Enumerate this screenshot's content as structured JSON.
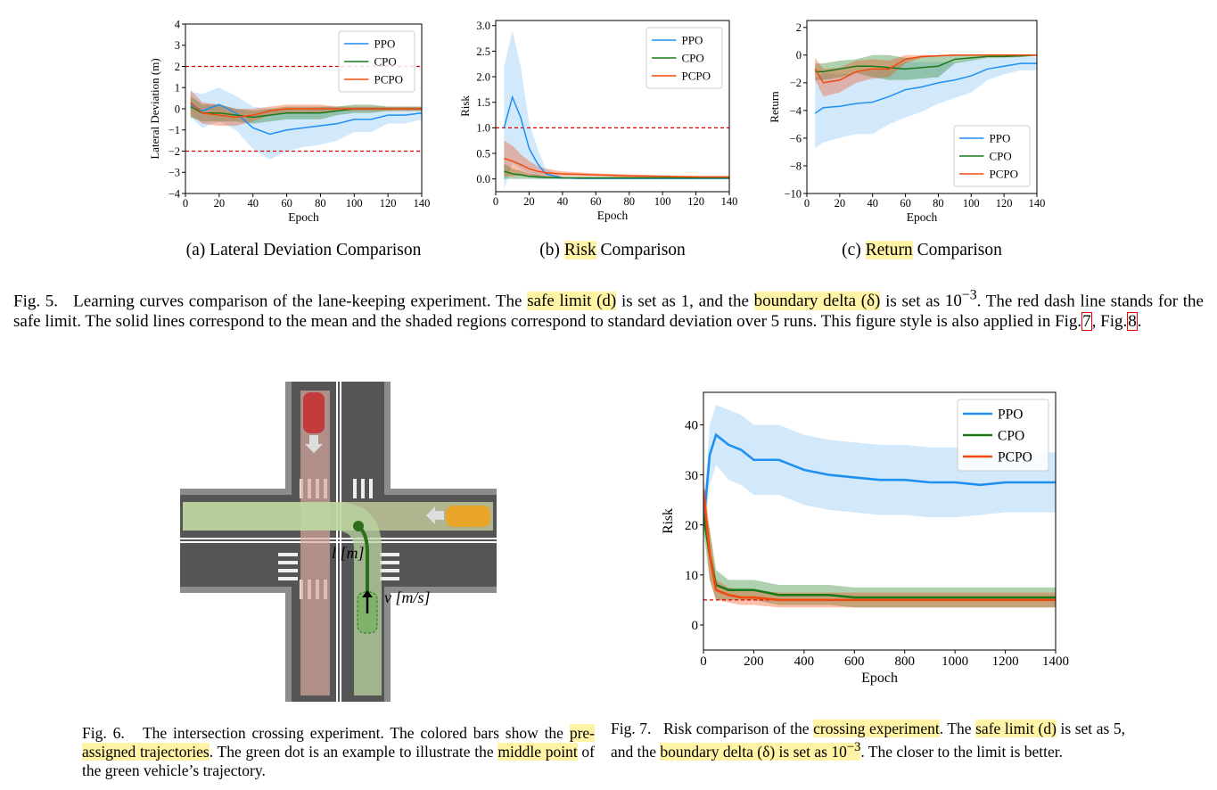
{
  "chart_data": [
    {
      "type": "line",
      "xlabel": "Epoch",
      "ylabel": "Lateral Deviation (m)",
      "xlim": [
        0,
        140
      ],
      "ylim": [
        -4,
        4
      ],
      "xticks": [
        0,
        20,
        40,
        60,
        80,
        100,
        120,
        140
      ],
      "yticks": [
        {
          "value": -4,
          "label": "−4"
        },
        {
          "value": -3,
          "label": "−3"
        },
        {
          "value": -2,
          "label": "−2"
        },
        {
          "value": -1,
          "label": "−1"
        },
        0,
        1,
        2,
        3,
        4
      ],
      "reference_lines": [
        2,
        -2
      ],
      "reference_color": "#e00000",
      "legend": "upper right",
      "x": [
        3,
        10,
        20,
        30,
        40,
        50,
        60,
        70,
        80,
        90,
        100,
        110,
        120,
        130,
        140
      ],
      "series": [
        {
          "name": "PPO",
          "color": "#1f8ff0",
          "values": [
            0.2,
            -0.1,
            0.2,
            -0.2,
            -0.9,
            -1.2,
            -1.0,
            -0.9,
            -0.8,
            -0.7,
            -0.5,
            -0.5,
            -0.3,
            -0.3,
            -0.2
          ],
          "std": [
            0.6,
            0.8,
            0.8,
            0.8,
            1.0,
            1.2,
            1.0,
            0.9,
            0.9,
            0.8,
            0.6,
            0.6,
            0.4,
            0.4,
            0.3
          ]
        },
        {
          "name": "CPO",
          "color": "#1a7a1a",
          "values": [
            0.1,
            -0.2,
            -0.2,
            -0.3,
            -0.4,
            -0.3,
            -0.2,
            -0.2,
            -0.2,
            -0.1,
            0.0,
            0.0,
            0.0,
            0.0,
            0.0
          ],
          "std": [
            0.5,
            0.4,
            0.4,
            0.3,
            0.3,
            0.3,
            0.3,
            0.3,
            0.3,
            0.2,
            0.2,
            0.2,
            0.1,
            0.1,
            0.1
          ]
        },
        {
          "name": "PCPO",
          "color": "#f04a10",
          "values": [
            0.3,
            -0.2,
            -0.3,
            -0.4,
            -0.3,
            -0.1,
            0.0,
            0.0,
            0.0,
            0.0,
            0.0,
            0.0,
            0.0,
            0.0,
            0.0
          ],
          "std": [
            0.6,
            0.5,
            0.5,
            0.4,
            0.3,
            0.2,
            0.2,
            0.2,
            0.2,
            0.1,
            0.1,
            0.1,
            0.1,
            0.1,
            0.1
          ]
        }
      ],
      "caption": [
        "(a) Lateral Deviation Comparison"
      ]
    },
    {
      "type": "line",
      "xlabel": "Epoch",
      "ylabel": "Risk",
      "xlim": [
        0,
        140
      ],
      "ylim": [
        -0.25,
        3.1
      ],
      "xticks": [
        0,
        20,
        40,
        60,
        80,
        100,
        120,
        140
      ],
      "yticks": [
        {
          "value": 0,
          "label": "0.0"
        },
        0.5,
        {
          "value": 1,
          "label": "1.0"
        },
        1.5,
        {
          "value": 2,
          "label": "2.0"
        },
        2.5,
        {
          "value": 3,
          "label": "3.0"
        }
      ],
      "reference_lines": [
        1
      ],
      "reference_color": "#e00000",
      "legend": "upper right",
      "x": [
        5,
        10,
        15,
        20,
        25,
        30,
        40,
        50,
        60,
        70,
        80,
        100,
        120,
        140
      ],
      "series": [
        {
          "name": "PPO",
          "color": "#1f8ff0",
          "values": [
            1.0,
            1.6,
            1.2,
            0.6,
            0.3,
            0.1,
            0.02,
            0.01,
            0.01,
            0.01,
            0.01,
            0.01,
            0.01,
            0.01
          ],
          "std": [
            1.2,
            1.3,
            1.0,
            0.5,
            0.3,
            0.1,
            0.02,
            0.01,
            0.01,
            0.01,
            0.01,
            0.01,
            0.01,
            0.01
          ]
        },
        {
          "name": "CPO",
          "color": "#1a7a1a",
          "values": [
            0.15,
            0.1,
            0.08,
            0.05,
            0.04,
            0.03,
            0.02,
            0.02,
            0.02,
            0.02,
            0.02,
            0.02,
            0.02,
            0.02
          ],
          "std": [
            0.15,
            0.1,
            0.08,
            0.05,
            0.04,
            0.03,
            0.02,
            0.02,
            0.02,
            0.02,
            0.02,
            0.02,
            0.02,
            0.02
          ]
        },
        {
          "name": "PCPO",
          "color": "#f04a10",
          "values": [
            0.4,
            0.35,
            0.28,
            0.2,
            0.15,
            0.12,
            0.1,
            0.09,
            0.08,
            0.07,
            0.06,
            0.05,
            0.04,
            0.04
          ],
          "std": [
            0.35,
            0.3,
            0.2,
            0.15,
            0.1,
            0.08,
            0.05,
            0.04,
            0.03,
            0.03,
            0.03,
            0.02,
            0.02,
            0.02
          ]
        }
      ],
      "caption": [
        "(b) ",
        {
          "text": "Risk",
          "highlight": true
        },
        " Comparison"
      ]
    },
    {
      "type": "line",
      "xlabel": "Epoch",
      "ylabel": "Return",
      "xlim": [
        0,
        140
      ],
      "ylim": [
        -10,
        2.5
      ],
      "xticks": [
        0,
        20,
        40,
        60,
        80,
        100,
        120,
        140
      ],
      "yticks": [
        {
          "value": -10,
          "label": "−10"
        },
        {
          "value": -8,
          "label": "−8"
        },
        {
          "value": -6,
          "label": "−6"
        },
        {
          "value": -4,
          "label": "−4"
        },
        {
          "value": -2,
          "label": "−2"
        },
        0,
        2
      ],
      "legend": "lower right",
      "x": [
        5,
        10,
        20,
        30,
        40,
        50,
        60,
        70,
        80,
        90,
        100,
        110,
        120,
        130,
        140
      ],
      "series": [
        {
          "name": "PPO",
          "color": "#1f8ff0",
          "values": [
            -4.2,
            -3.8,
            -3.7,
            -3.5,
            -3.4,
            -3.0,
            -2.5,
            -2.3,
            -2.0,
            -1.8,
            -1.5,
            -1.0,
            -0.8,
            -0.6,
            -0.6
          ],
          "std": [
            2.5,
            2.5,
            2.3,
            2.2,
            2.3,
            2.0,
            2.0,
            1.8,
            1.5,
            1.3,
            1.2,
            0.8,
            0.6,
            0.5,
            0.5
          ]
        },
        {
          "name": "CPO",
          "color": "#1a7a1a",
          "values": [
            -1.2,
            -1.2,
            -1.0,
            -0.8,
            -0.8,
            -0.9,
            -1.0,
            -0.9,
            -0.8,
            -0.3,
            -0.2,
            -0.1,
            -0.1,
            -0.05,
            0.0
          ],
          "std": [
            0.6,
            0.6,
            0.6,
            0.5,
            0.8,
            0.9,
            0.8,
            0.8,
            0.8,
            0.3,
            0.2,
            0.1,
            0.1,
            0.1,
            0.05
          ]
        },
        {
          "name": "PCPO",
          "color": "#f04a10",
          "values": [
            -1.0,
            -2.0,
            -1.8,
            -1.2,
            -1.0,
            -1.0,
            -0.3,
            -0.1,
            -0.05,
            0,
            0,
            0,
            0,
            0,
            0
          ],
          "std": [
            0.8,
            1.0,
            0.9,
            0.8,
            0.7,
            0.6,
            0.3,
            0.1,
            0.05,
            0.05,
            0.05,
            0.05,
            0.05,
            0.05,
            0.05
          ]
        }
      ],
      "caption": [
        "(c) ",
        {
          "text": "Return",
          "highlight": true
        },
        " Comparison"
      ]
    },
    {
      "type": "line",
      "xlabel": "Epoch",
      "ylabel": "Risk",
      "xlim": [
        0,
        1400
      ],
      "ylim": [
        -5,
        46.5
      ],
      "xticks": [
        0,
        200,
        400,
        600,
        800,
        1000,
        1200,
        1400
      ],
      "yticks": [
        0,
        10,
        20,
        30,
        40
      ],
      "reference_lines": [
        5
      ],
      "reference_color": "#e00000",
      "legend": "upper right",
      "x": [
        0,
        25,
        50,
        100,
        150,
        200,
        300,
        400,
        500,
        600,
        700,
        800,
        900,
        1000,
        1100,
        1200,
        1300,
        1400
      ],
      "series": [
        {
          "name": "PPO",
          "color": "#1f8ff0",
          "values": [
            20,
            34,
            38,
            36,
            35,
            33,
            33,
            31,
            30,
            29.5,
            29,
            29,
            28.5,
            28.5,
            28,
            28.5,
            28.5,
            28.5
          ],
          "std": [
            3,
            6,
            6,
            7,
            7,
            7,
            7,
            7,
            7,
            7,
            7,
            7,
            7,
            7,
            6,
            6,
            6,
            6
          ]
        },
        {
          "name": "CPO",
          "color": "#1a7a1a",
          "values": [
            22,
            14,
            8,
            7,
            7,
            7,
            6,
            6,
            6,
            5.5,
            5.5,
            5.5,
            5.5,
            5.5,
            5.5,
            5.5,
            5.5,
            5.5
          ],
          "std": [
            3,
            5,
            3,
            2,
            2,
            2,
            2,
            2,
            2,
            2,
            2,
            2,
            2,
            2,
            2,
            2,
            2,
            2
          ]
        },
        {
          "name": "PCPO",
          "color": "#f04a10",
          "values": [
            27,
            14,
            7,
            6,
            5.5,
            5.5,
            5,
            5,
            5,
            5,
            5,
            5,
            5,
            5,
            5,
            5,
            5,
            5
          ],
          "std": [
            3,
            5,
            2,
            1.5,
            1.5,
            1.5,
            1.5,
            1.5,
            1.5,
            1.5,
            1.5,
            1.5,
            1.5,
            1.5,
            1.5,
            1.5,
            1.5,
            1.5
          ]
        }
      ]
    }
  ],
  "diagram": {
    "labels": [
      "l [m]",
      "v [m/s]"
    ]
  },
  "captions": {
    "fig5": [
      "Fig. 5.   Learning curves comparison of the lane-keeping experiment. The ",
      {
        "text": "safe limit (d)",
        "highlight": true
      },
      " is set as 1, and the ",
      {
        "text": "boundary delta (δ)",
        "highlight": true
      },
      " is set as ",
      {
        "text": "10",
        "sup": "−3"
      },
      ". The red dash line stands for the safe limit. The solid lines correspond to the mean and the shaded regions correspond to standard deviation over 5 runs. This figure style is also applied in Fig.",
      {
        "text": "7",
        "ref": true
      },
      ", Fig.",
      {
        "text": "8",
        "ref": true
      },
      "."
    ],
    "fig6": [
      "Fig. 6.   The intersection crossing experiment. The colored bars show the ",
      {
        "text": "pre-assigned trajectories",
        "highlight": true
      },
      ". The green dot is an example to illustrate the ",
      {
        "text": "middle point",
        "highlight": true
      },
      " of the green vehicle’s trajectory."
    ],
    "fig7": [
      "Fig. 7.   Risk comparison of the ",
      {
        "text": "crossing experiment",
        "highlight": true
      },
      ". The ",
      {
        "text": "safe limit (d)",
        "highlight": true
      },
      " is set as 5, and the ",
      {
        "text": "boundary delta (δ) is set as 10",
        "sup": "−3",
        "highlight": true
      },
      ". The closer to the limit is better."
    ]
  }
}
